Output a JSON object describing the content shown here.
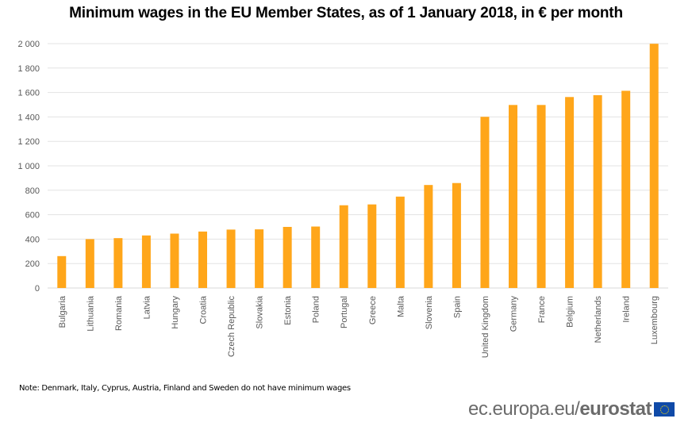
{
  "chart_data": {
    "type": "bar",
    "title": "Minimum  wages in the EU Member States, as of 1 January 2018, in € per month",
    "xlabel": "",
    "ylabel": "",
    "ylim": [
      0,
      2000
    ],
    "yticks": [
      0,
      200,
      400,
      600,
      800,
      1000,
      1200,
      1400,
      1600,
      1800,
      2000
    ],
    "ytick_labels": [
      "0",
      "200",
      "400",
      "600",
      "800",
      "1 000",
      "1 200",
      "1 400",
      "1 600",
      "1 800",
      "2 000"
    ],
    "grid": true,
    "legend": "none",
    "bar_color": "#FFA61A",
    "categories": [
      "Bulgaria",
      "Lithuania",
      "Romania",
      "Latvia",
      "Hungary",
      "Croatia",
      "Czech Republic",
      "Slovakia",
      "Estonia",
      "Poland",
      "Portugal",
      "Greece",
      "Malta",
      "Slovenia",
      "Spain",
      "United Kingdom",
      "Germany",
      "France",
      "Belgium",
      "Netherlands",
      "Ireland",
      "Luxembourg"
    ],
    "values": [
      261,
      400,
      408,
      430,
      445,
      462,
      478,
      480,
      500,
      503,
      677,
      684,
      748,
      843,
      859,
      1401,
      1498,
      1498,
      1563,
      1578,
      1614,
      1999
    ]
  },
  "note": "Note:  Denmark,  Italy, Cyprus, Austria, Finland and Sweden do not have minimum wages",
  "logo": {
    "url_part": "ec.europa.eu/",
    "brand_part": "eurostat",
    "flag_icon": "eu-flag-icon"
  }
}
